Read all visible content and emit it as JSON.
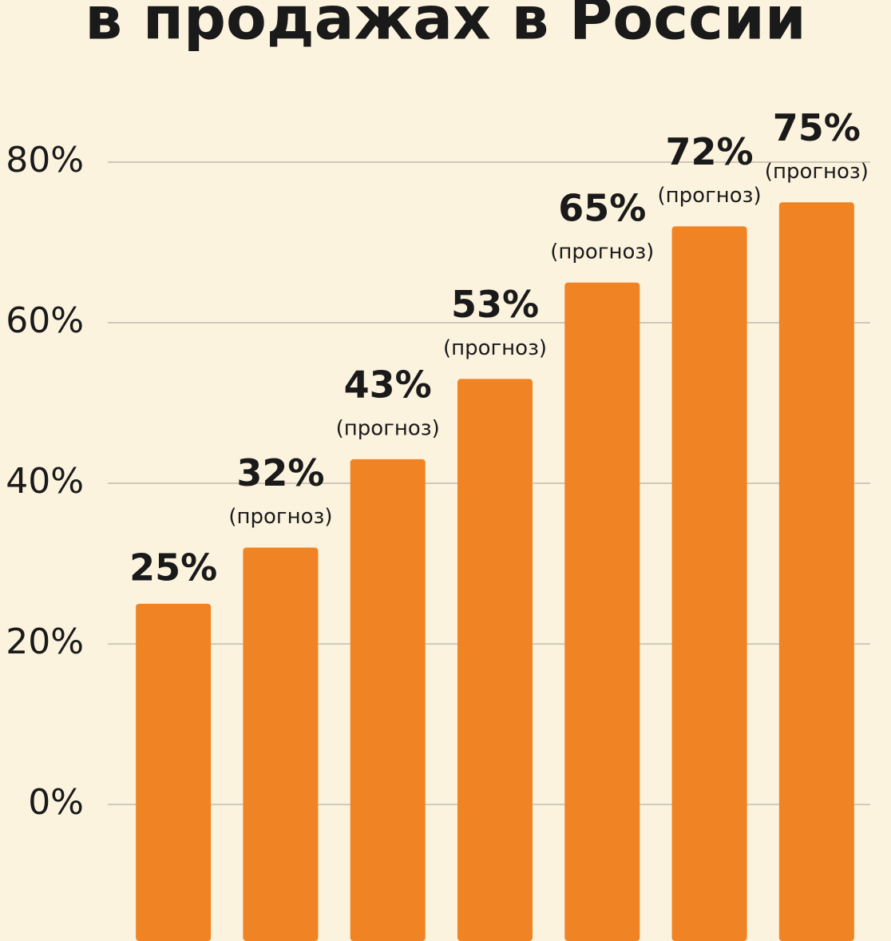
{
  "chart_data": {
    "type": "bar",
    "title": "в продажах в России",
    "values": [
      25,
      32,
      43,
      53,
      65,
      72,
      75
    ],
    "value_labels": [
      "25%",
      "32%",
      "43%",
      "53%",
      "65%",
      "72%",
      "75%"
    ],
    "notes": [
      null,
      "(прогноз)",
      "(прогноз)",
      "(прогноз)",
      "(прогноз)",
      "(прогноз)",
      "(прогноз)"
    ],
    "color": "#f08323",
    "ylim": [
      -17,
      80
    ],
    "yticks": [
      {
        "value": 0,
        "label": "0%"
      },
      {
        "value": 20,
        "label": "20%"
      },
      {
        "value": 40,
        "label": "40%"
      },
      {
        "value": 60,
        "label": "60%"
      },
      {
        "value": 80,
        "label": "80%"
      }
    ],
    "grid": true
  }
}
